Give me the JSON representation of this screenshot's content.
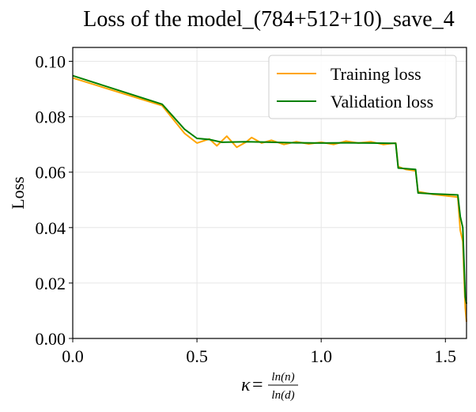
{
  "chart_data": {
    "type": "line",
    "title": "Loss of the model_(784+512+10)_save_4",
    "ylabel": "Loss",
    "xlabel": {
      "symbol": "κ",
      "equals": "=",
      "numerator": "ln(n)",
      "denominator": "ln(d)"
    },
    "xlim": [
      0.0,
      1.585
    ],
    "ylim": [
      0.0,
      0.105
    ],
    "xticks": [
      0.0,
      0.5,
      1.0,
      1.5
    ],
    "xtick_labels": [
      "0.0",
      "0.5",
      "1.0",
      "1.5"
    ],
    "yticks": [
      0.0,
      0.02,
      0.04,
      0.06,
      0.08,
      0.1
    ],
    "ytick_labels": [
      "0.00",
      "0.02",
      "0.04",
      "0.06",
      "0.08",
      "0.10"
    ],
    "grid": true,
    "legend_position": "top-right",
    "series": [
      {
        "name": "Training loss",
        "color": "#FFA500",
        "x": [
          0.0,
          0.36,
          0.45,
          0.5,
          0.55,
          0.58,
          0.62,
          0.66,
          0.7,
          0.72,
          0.76,
          0.8,
          0.85,
          0.9,
          0.95,
          1.0,
          1.05,
          1.1,
          1.15,
          1.2,
          1.25,
          1.3,
          1.31,
          1.34,
          1.38,
          1.39,
          1.45,
          1.5,
          1.55,
          1.56,
          1.57,
          1.58,
          1.585
        ],
        "y": [
          0.094,
          0.084,
          0.074,
          0.0705,
          0.072,
          0.0695,
          0.073,
          0.069,
          0.071,
          0.0725,
          0.0705,
          0.0715,
          0.07,
          0.071,
          0.0702,
          0.0708,
          0.07,
          0.0712,
          0.0705,
          0.071,
          0.07,
          0.0705,
          0.062,
          0.061,
          0.0605,
          0.053,
          0.052,
          0.0515,
          0.051,
          0.039,
          0.035,
          0.011,
          0.006
        ]
      },
      {
        "name": "Validation loss",
        "color": "#008000",
        "x": [
          0.0,
          0.36,
          0.45,
          0.5,
          0.55,
          0.6,
          0.7,
          0.8,
          0.9,
          1.0,
          1.1,
          1.2,
          1.3,
          1.31,
          1.35,
          1.38,
          1.39,
          1.45,
          1.5,
          1.55,
          1.56,
          1.57,
          1.58,
          1.585
        ],
        "y": [
          0.0948,
          0.0845,
          0.0755,
          0.0722,
          0.0718,
          0.0708,
          0.071,
          0.0708,
          0.0706,
          0.0705,
          0.0706,
          0.0705,
          0.0704,
          0.0615,
          0.0612,
          0.061,
          0.0525,
          0.0522,
          0.052,
          0.0518,
          0.044,
          0.04,
          0.015,
          0.0125
        ]
      }
    ]
  }
}
